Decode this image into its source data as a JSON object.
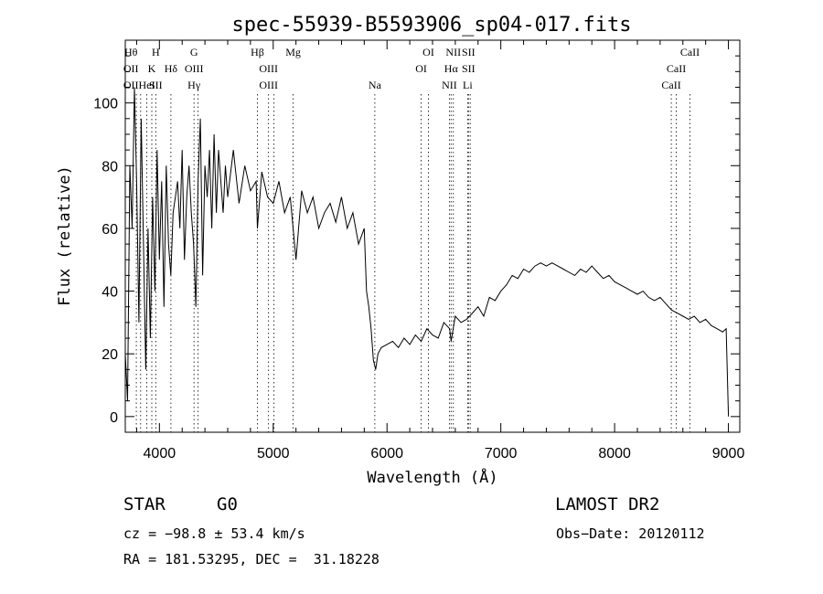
{
  "chart_data": {
    "type": "line",
    "title": "spec-55939-B5593906_sp04-017.fits",
    "xlabel": "Wavelength (Å)",
    "ylabel": "Flux (relative)",
    "xlim": [
      3700,
      9100
    ],
    "ylim": [
      -5,
      120
    ],
    "xticks": [
      4000,
      5000,
      6000,
      7000,
      8000,
      9000
    ],
    "yticks": [
      0,
      20,
      40,
      60,
      80,
      100
    ],
    "grid": false,
    "series": [
      {
        "values_note": "",
        "x": [
          3700,
          3720,
          3740,
          3760,
          3780,
          3800,
          3820,
          3840,
          3860,
          3880,
          3900,
          3920,
          3940,
          3960,
          3980,
          4000,
          4020,
          4040,
          4060,
          4080,
          4100,
          4120,
          4140,
          4160,
          4180,
          4200,
          4220,
          4240,
          4260,
          4280,
          4300,
          4320,
          4340,
          4360,
          4380,
          4400,
          4420,
          4440,
          4460,
          4480,
          4500,
          4520,
          4540,
          4560,
          4580,
          4600,
          4650,
          4700,
          4750,
          4800,
          4850,
          4861,
          4900,
          4950,
          5000,
          5050,
          5100,
          5150,
          5200,
          5250,
          5300,
          5350,
          5400,
          5450,
          5500,
          5550,
          5600,
          5650,
          5700,
          5750,
          5800,
          5820,
          5840,
          5860,
          5880,
          5900,
          5920,
          5950,
          6000,
          6050,
          6100,
          6150,
          6200,
          6250,
          6300,
          6350,
          6400,
          6450,
          6500,
          6550,
          6563,
          6600,
          6650,
          6700,
          6750,
          6800,
          6850,
          6900,
          6950,
          7000,
          7050,
          7100,
          7150,
          7200,
          7250,
          7300,
          7350,
          7400,
          7450,
          7500,
          7550,
          7600,
          7650,
          7700,
          7750,
          7800,
          7850,
          7900,
          7950,
          8000,
          8050,
          8100,
          8150,
          8200,
          8250,
          8300,
          8350,
          8400,
          8450,
          8500,
          8550,
          8600,
          8650,
          8700,
          8750,
          8800,
          8850,
          8900,
          8950,
          8980,
          9000
        ],
        "values": [
          20,
          5,
          80,
          60,
          105,
          75,
          30,
          95,
          55,
          15,
          60,
          25,
          70,
          40,
          85,
          50,
          75,
          35,
          80,
          55,
          45,
          65,
          70,
          75,
          60,
          85,
          50,
          70,
          80,
          65,
          55,
          35,
          75,
          95,
          45,
          80,
          70,
          85,
          60,
          90,
          65,
          85,
          75,
          65,
          80,
          70,
          85,
          68,
          80,
          72,
          75,
          60,
          78,
          70,
          68,
          75,
          65,
          70,
          50,
          72,
          65,
          70,
          60,
          65,
          68,
          62,
          70,
          60,
          65,
          55,
          60,
          40,
          35,
          28,
          18,
          15,
          20,
          22,
          23,
          24,
          22,
          25,
          23,
          26,
          24,
          28,
          26,
          25,
          30,
          28,
          24,
          32,
          30,
          31,
          33,
          35,
          32,
          38,
          37,
          40,
          42,
          45,
          44,
          47,
          46,
          48,
          49,
          48,
          49,
          48,
          47,
          46,
          45,
          47,
          46,
          48,
          46,
          44,
          45,
          43,
          42,
          41,
          40,
          39,
          40,
          38,
          37,
          38,
          36,
          34,
          33,
          32,
          31,
          32,
          30,
          31,
          29,
          28,
          27,
          28,
          0
        ]
      }
    ],
    "line_markers": [
      {
        "wl": 3750,
        "labels": [
          "Hθ",
          "OII",
          "OII"
        ]
      },
      {
        "wl": 3797,
        "labels": [],
        "dotted": true
      },
      {
        "wl": 3835,
        "labels": [],
        "dotted": true
      },
      {
        "wl": 3889,
        "labels": [
          "",
          "",
          "HeI"
        ],
        "dotted": true
      },
      {
        "wl": 3933,
        "labels": [
          "",
          "K",
          ""
        ],
        "dotted": true
      },
      {
        "wl": 3968,
        "labels": [
          "H",
          "",
          "SII"
        ],
        "dotted": true
      },
      {
        "wl": 4101,
        "labels": [
          "",
          "Hδ",
          ""
        ],
        "dotted": true
      },
      {
        "wl": 4304,
        "labels": [
          "G",
          "OIII",
          "Hγ"
        ],
        "dotted": true
      },
      {
        "wl": 4340,
        "labels": [],
        "dotted": true
      },
      {
        "wl": 4861,
        "labels": [
          "Hβ",
          "",
          ""
        ],
        "dotted": true
      },
      {
        "wl": 4959,
        "labels": [
          "",
          "OIII",
          "OIII"
        ],
        "dotted": true
      },
      {
        "wl": 5007,
        "labels": [],
        "dotted": true
      },
      {
        "wl": 5175,
        "labels": [
          "Mg",
          "",
          ""
        ],
        "dotted": true
      },
      {
        "wl": 5893,
        "labels": [
          "",
          "",
          "Na"
        ],
        "dotted": true
      },
      {
        "wl": 6300,
        "labels": [
          "",
          "OI",
          ""
        ],
        "dotted": true
      },
      {
        "wl": 6364,
        "labels": [
          "OI",
          "",
          ""
        ],
        "dotted": true
      },
      {
        "wl": 6548,
        "labels": [
          "",
          "",
          "NII"
        ],
        "dotted": true
      },
      {
        "wl": 6563,
        "labels": [
          "",
          "Hα",
          ""
        ],
        "dotted": true
      },
      {
        "wl": 6583,
        "labels": [
          "NII",
          "",
          ""
        ],
        "dotted": true
      },
      {
        "wl": 6708,
        "labels": [
          "",
          "",
          "Li"
        ],
        "dotted": true
      },
      {
        "wl": 6716,
        "labels": [
          "SII",
          "SII",
          ""
        ],
        "dotted": true
      },
      {
        "wl": 6731,
        "labels": [],
        "dotted": true
      },
      {
        "wl": 8498,
        "labels": [
          "",
          "",
          "CaII"
        ],
        "dotted": true
      },
      {
        "wl": 8542,
        "labels": [
          "",
          "CaII",
          ""
        ],
        "dotted": true
      },
      {
        "wl": 8662,
        "labels": [
          "CaII",
          "",
          ""
        ],
        "dotted": true
      }
    ]
  },
  "info": {
    "class_label": "STAR",
    "subclass_label": "G0",
    "survey": "LAMOST DR2",
    "cz": "cz = −98.8 ± 53.4 km/s",
    "obs_date": "Obs−Date: 20120112",
    "radec": "RA = 181.53295, DEC =  31.18228"
  }
}
